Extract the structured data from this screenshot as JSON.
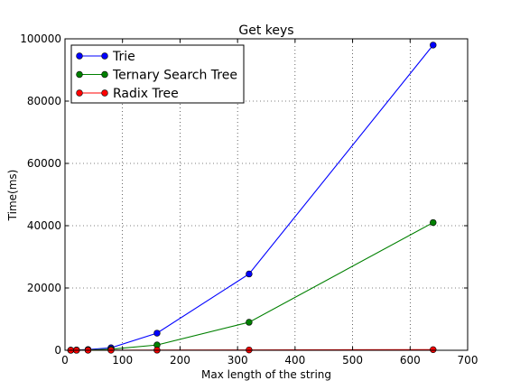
{
  "chart_data": {
    "type": "line",
    "title": "Get keys",
    "xlabel": "Max length of the string",
    "ylabel": "Time(ms)",
    "xlim": [
      0,
      700
    ],
    "ylim": [
      0,
      100000
    ],
    "xticks": [
      0,
      100,
      200,
      300,
      400,
      500,
      600,
      700
    ],
    "yticks": [
      0,
      20000,
      40000,
      60000,
      80000,
      100000
    ],
    "grid": true,
    "legend_position": "top-left",
    "series": [
      {
        "name": "Trie",
        "color": "#0000ff",
        "x": [
          10,
          20,
          40,
          80,
          160,
          320,
          640
        ],
        "y": [
          50,
          100,
          250,
          800,
          5500,
          24500,
          98000
        ]
      },
      {
        "name": "Ternary Search Tree",
        "color": "#008000",
        "x": [
          10,
          20,
          40,
          80,
          160,
          320,
          640
        ],
        "y": [
          20,
          50,
          100,
          350,
          1700,
          9000,
          41000
        ]
      },
      {
        "name": "Radix Tree",
        "color": "#ff0000",
        "x": [
          10,
          20,
          40,
          80,
          160,
          320,
          640
        ],
        "y": [
          5,
          10,
          15,
          30,
          50,
          100,
          200
        ]
      }
    ]
  }
}
